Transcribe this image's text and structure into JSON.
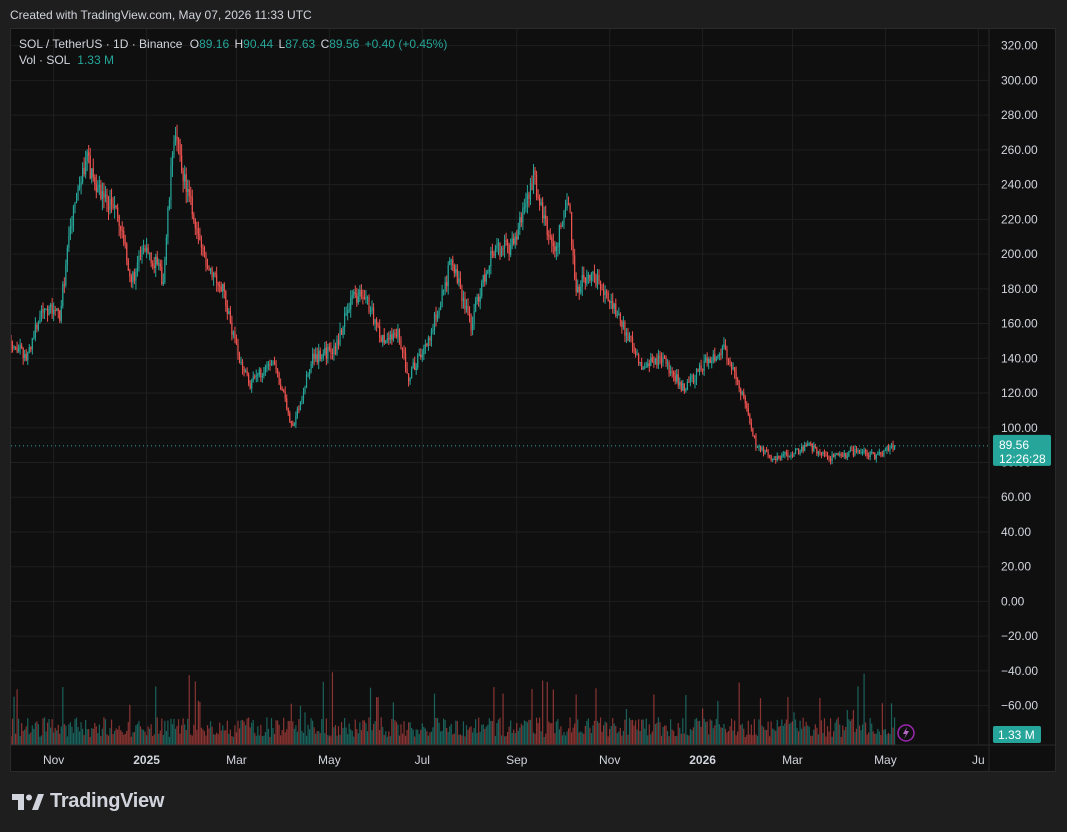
{
  "header": {
    "created_text": "Created with TradingView.com, May 07, 2026 11:33 UTC"
  },
  "legend": {
    "symbol": "SOL / TetherUS · 1D · Binance",
    "o_label": "O",
    "o_value": "89.16",
    "h_label": "H",
    "h_value": "90.44",
    "l_label": "L",
    "l_value": "87.63",
    "c_label": "C",
    "c_value": "89.56",
    "change": "+0.40 (+0.45%)",
    "vol_label": "Vol · SOL",
    "vol_value": "1.33 M"
  },
  "price_badge": {
    "price": "89.56",
    "countdown": "12:26:28"
  },
  "volume_badge": {
    "value": "1.33 M"
  },
  "footer": {
    "brand": "TradingView"
  },
  "colors": {
    "up": "#26a69a",
    "down": "#ef5350",
    "background": "#0f0f0f",
    "grid": "#1f1f1f",
    "text": "#d1d4dc"
  },
  "chart_data": {
    "type": "candlestick",
    "symbol": "SOL / TetherUS",
    "interval": "1D",
    "exchange": "Binance",
    "y_ticks": [
      "320.00",
      "300.00",
      "280.00",
      "260.00",
      "240.00",
      "220.00",
      "200.00",
      "180.00",
      "160.00",
      "140.00",
      "120.00",
      "100.00",
      "80.00",
      "60.00",
      "40.00",
      "20.00",
      "0.00",
      "−20.00",
      "−40.00",
      "−60.00"
    ],
    "ylim": [
      -70,
      325
    ],
    "x_ticks": [
      {
        "label": "Nov",
        "date": "2024-11-01"
      },
      {
        "label": "2025",
        "date": "2025-01-01"
      },
      {
        "label": "Mar",
        "date": "2025-03-01"
      },
      {
        "label": "May",
        "date": "2025-05-01"
      },
      {
        "label": "Jul",
        "date": "2025-07-01"
      },
      {
        "label": "Sep",
        "date": "2025-09-01"
      },
      {
        "label": "Nov",
        "date": "2025-11-01"
      },
      {
        "label": "2026",
        "date": "2026-01-01"
      },
      {
        "label": "Mar",
        "date": "2026-03-01"
      },
      {
        "label": "May",
        "date": "2026-05-01"
      },
      {
        "label": "Ju",
        "date": "2026-07-01"
      }
    ],
    "xlim": [
      "2024-10-04",
      "2026-07-08"
    ],
    "last_price": 89.56,
    "price_path": [
      {
        "date": "2024-10-04",
        "close": 150
      },
      {
        "date": "2024-10-14",
        "close": 140
      },
      {
        "date": "2024-10-25",
        "close": 170
      },
      {
        "date": "2024-11-05",
        "close": 165
      },
      {
        "date": "2024-11-12",
        "close": 215
      },
      {
        "date": "2024-11-22",
        "close": 255
      },
      {
        "date": "2024-12-02",
        "close": 235
      },
      {
        "date": "2024-12-12",
        "close": 225
      },
      {
        "date": "2024-12-22",
        "close": 185
      },
      {
        "date": "2025-01-01",
        "close": 205
      },
      {
        "date": "2025-01-12",
        "close": 185
      },
      {
        "date": "2025-01-19",
        "close": 270
      },
      {
        "date": "2025-01-28",
        "close": 235
      },
      {
        "date": "2025-02-07",
        "close": 200
      },
      {
        "date": "2025-02-20",
        "close": 180
      },
      {
        "date": "2025-03-01",
        "close": 145
      },
      {
        "date": "2025-03-10",
        "close": 125
      },
      {
        "date": "2025-03-25",
        "close": 140
      },
      {
        "date": "2025-04-07",
        "close": 100
      },
      {
        "date": "2025-04-20",
        "close": 140
      },
      {
        "date": "2025-05-05",
        "close": 145
      },
      {
        "date": "2025-05-15",
        "close": 175
      },
      {
        "date": "2025-05-25",
        "close": 175
      },
      {
        "date": "2025-06-05",
        "close": 150
      },
      {
        "date": "2025-06-15",
        "close": 155
      },
      {
        "date": "2025-06-22",
        "close": 130
      },
      {
        "date": "2025-07-05",
        "close": 150
      },
      {
        "date": "2025-07-20",
        "close": 195
      },
      {
        "date": "2025-08-02",
        "close": 160
      },
      {
        "date": "2025-08-15",
        "close": 200
      },
      {
        "date": "2025-08-30",
        "close": 205
      },
      {
        "date": "2025-09-12",
        "close": 245
      },
      {
        "date": "2025-09-25",
        "close": 200
      },
      {
        "date": "2025-10-05",
        "close": 230
      },
      {
        "date": "2025-10-10",
        "close": 180
      },
      {
        "date": "2025-10-20",
        "close": 190
      },
      {
        "date": "2025-11-01",
        "close": 175
      },
      {
        "date": "2025-11-12",
        "close": 155
      },
      {
        "date": "2025-11-22",
        "close": 135
      },
      {
        "date": "2025-12-05",
        "close": 140
      },
      {
        "date": "2025-12-20",
        "close": 122
      },
      {
        "date": "2026-01-05",
        "close": 140
      },
      {
        "date": "2026-01-15",
        "close": 145
      },
      {
        "date": "2026-01-25",
        "close": 125
      },
      {
        "date": "2026-02-05",
        "close": 90
      },
      {
        "date": "2026-02-15",
        "close": 82
      },
      {
        "date": "2026-03-01",
        "close": 85
      },
      {
        "date": "2026-03-12",
        "close": 90
      },
      {
        "date": "2026-03-25",
        "close": 82
      },
      {
        "date": "2026-04-10",
        "close": 86
      },
      {
        "date": "2026-04-25",
        "close": 84
      },
      {
        "date": "2026-05-07",
        "close": 89.56
      }
    ]
  }
}
